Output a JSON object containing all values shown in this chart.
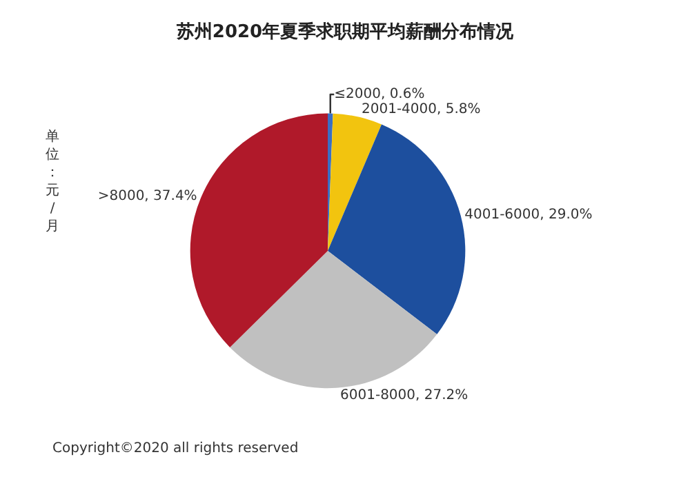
{
  "chart_data": {
    "type": "pie",
    "title": "苏州2020年夏季求职期平均薪酬分布情况",
    "categories": [
      "≤2000",
      "2001-4000",
      "4001-6000",
      "6001-8000",
      ">8000"
    ],
    "values": [
      0.6,
      5.8,
      29.0,
      27.2,
      37.4
    ],
    "value_labels": [
      "0.6%",
      "5.8%",
      "29.0%",
      "27.2%",
      "37.4%"
    ],
    "colors": [
      "#3a6fc4",
      "#f2c40f",
      "#1d4f9e",
      "#c0c0c0",
      "#b0192a"
    ],
    "legend": false,
    "annotations": [
      "单位：元/月",
      "Copyright©2020 all rights reserved"
    ]
  }
}
